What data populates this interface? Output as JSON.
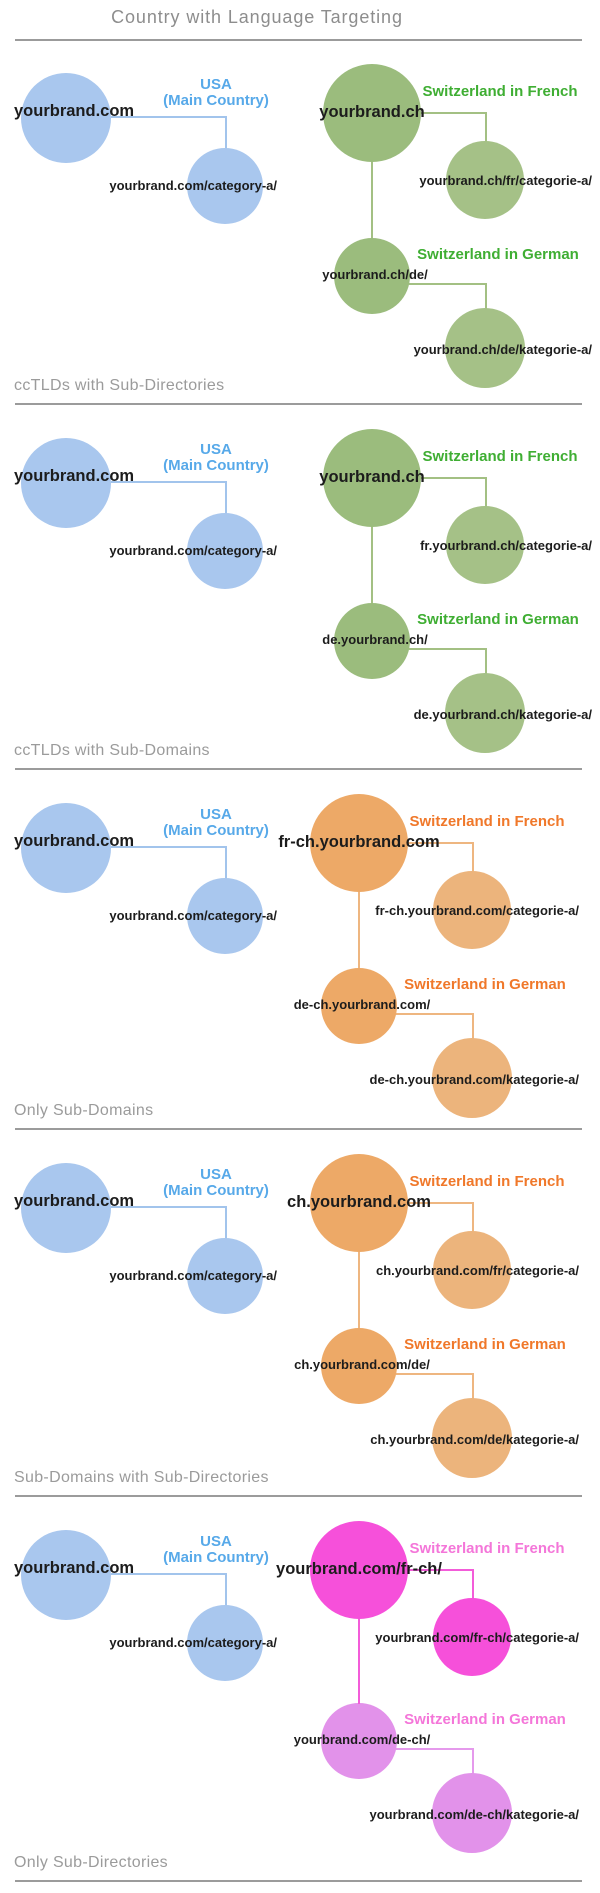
{
  "title": "Country with Language Targeting",
  "usa_group": {
    "domain": "yourbrand.com",
    "country_label": [
      "USA",
      "(Main Country)"
    ],
    "category_page": "yourbrand.com/category-a/"
  },
  "swiss_labels": {
    "french": "Switzerland in French",
    "german": "Switzerland in German"
  },
  "sections": [
    {
      "name": "ccTLDs with Sub-Directories",
      "scheme": "green",
      "swiss_home": "yourbrand.ch",
      "french_category": "yourbrand.ch/fr/categorie-a/",
      "german_home": "yourbrand.ch/de/",
      "german_category": "yourbrand.ch/de/kategorie-a/"
    },
    {
      "name": "ccTLDs with Sub-Domains",
      "scheme": "green",
      "swiss_home": "yourbrand.ch",
      "french_category": "fr.yourbrand.ch/categorie-a/",
      "german_home": "de.yourbrand.ch/",
      "german_category": "de.yourbrand.ch/kategorie-a/"
    },
    {
      "name": "Only Sub-Domains",
      "scheme": "orange",
      "swiss_home": "fr-ch.yourbrand.com",
      "french_category": "fr-ch.yourbrand.com/categorie-a/",
      "german_home": "de-ch.yourbrand.com/",
      "german_category": "de-ch.yourbrand.com/kategorie-a/"
    },
    {
      "name": "Sub-Domains with Sub-Directories",
      "scheme": "orange",
      "swiss_home": "ch.yourbrand.com",
      "french_category": "ch.yourbrand.com/fr/categorie-a/",
      "german_home": "ch.yourbrand.com/de/",
      "german_category": "ch.yourbrand.com/de/kategorie-a/"
    },
    {
      "name": "Only Sub-Directories",
      "scheme": "magenta",
      "swiss_home": "yourbrand.com/fr-ch/",
      "french_category": "yourbrand.com/fr-ch/categorie-a/",
      "german_home": "yourbrand.com/de-ch/",
      "german_category": "yourbrand.com/de-ch/kategorie-a/"
    }
  ],
  "colors": {
    "blue_circle": "#a9c7ee",
    "blue_line": "#a2c4ec",
    "blue_label": "#57a9e9",
    "green_dark": "#9bbc7d",
    "green_light": "#a5c187",
    "green_line": "#a3c083",
    "green_label": "#3fae33",
    "orange_dark": "#eda967",
    "orange_light": "#ecb47c",
    "orange_line": "#eeb680",
    "orange_label": "#f0782a",
    "magenta": "#f650da",
    "magenta_line": "#f35cd9",
    "orchid": "#e292ea",
    "orchid_line": "#e59aec",
    "pink_label": "#f476d9",
    "text_black": "#1c1c1c",
    "gray": "#9b9b9b",
    "title_gray": "#8d8d8d"
  }
}
